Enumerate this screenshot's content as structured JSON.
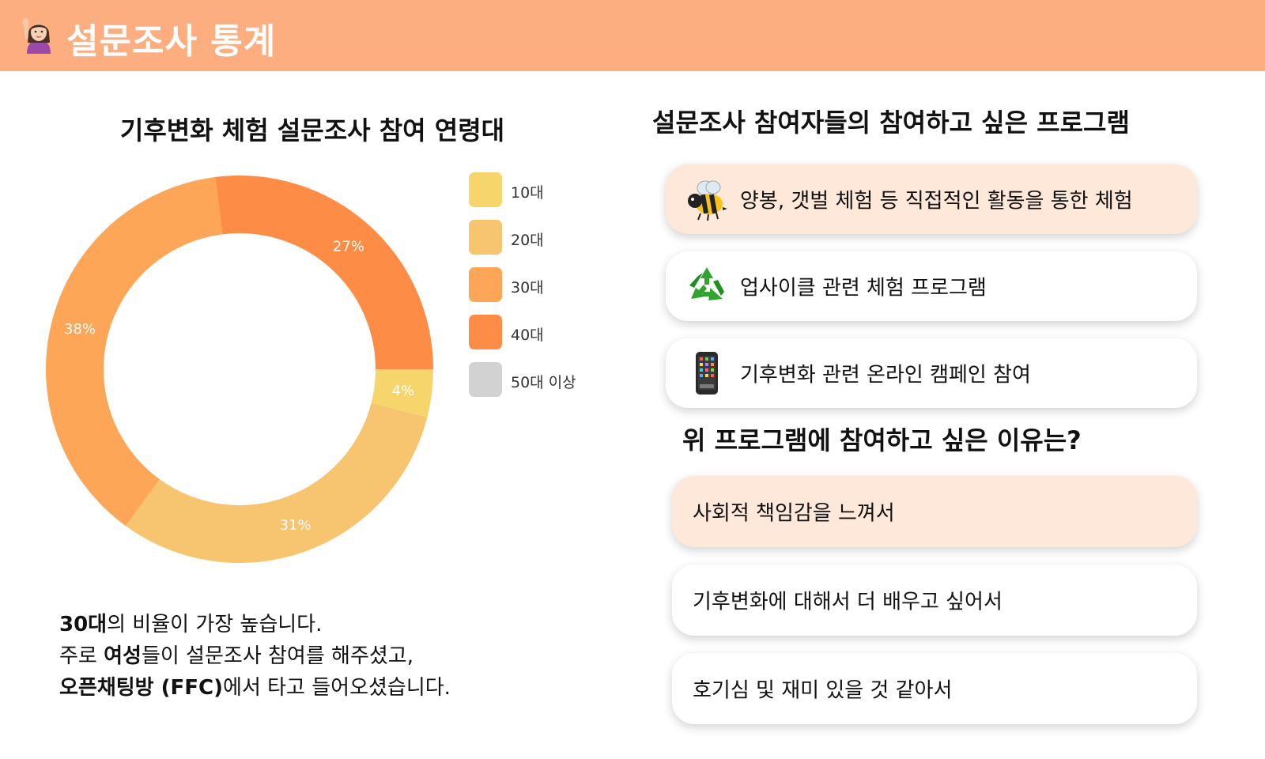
{
  "header": {
    "title": "설문조사 통계",
    "emoji": "person-raising-hand-icon"
  },
  "chart_data": {
    "type": "pie",
    "variant": "donut",
    "title": "기후변화 체험 설문조사 참여 연령대",
    "categories": [
      "10대",
      "20대",
      "30대",
      "40대",
      "50대 이상"
    ],
    "values": [
      4,
      31,
      38,
      27,
      0
    ],
    "value_labels": [
      "4%",
      "31%",
      "38%",
      "27%",
      ""
    ],
    "colors": [
      "#f6d56d",
      "#f7c470",
      "#fda657",
      "#fd8c47",
      "#d2d2d2"
    ],
    "start_angle_deg": 90,
    "direction": "clockwise",
    "legend_position": "right"
  },
  "summary": {
    "line1_bold": "30대",
    "line1_rest": "의 비율이 가장 높습니다.",
    "line2_pre": "주로 ",
    "line2_bold": "여성",
    "line2_rest": "들이 설문조사 참여를 해주셨고,",
    "line3_bold": "오픈채팅방 (FFC)",
    "line3_rest": "에서 타고 들어오셨습니다."
  },
  "programs": {
    "title": "설문조사 참여자들의 참여하고 싶은 프로그램",
    "items": [
      {
        "icon": "bee-icon",
        "label": "양봉, 갯벌 체험 등 직접적인 활동을 통한 체험",
        "highlighted": true
      },
      {
        "icon": "recycle-icon",
        "label": "업사이클 관련 체험 프로그램",
        "highlighted": false
      },
      {
        "icon": "mobile-phone-icon",
        "label": "기후변화 관련 온라인 캠페인 참여",
        "highlighted": false
      }
    ]
  },
  "reasons": {
    "title": "위 프로그램에 참여하고 싶은 이유는?",
    "items": [
      {
        "label": "사회적 책임감을 느껴서",
        "highlighted": true
      },
      {
        "label": "기후변화에 대해서 더 배우고 싶어서",
        "highlighted": false
      },
      {
        "label": "호기심 및 재미 있을 것 같아서",
        "highlighted": false
      }
    ]
  },
  "colors": {
    "header_bg": "#fdae80",
    "card_highlight": "#fde8da",
    "card_default": "#ffffff"
  }
}
